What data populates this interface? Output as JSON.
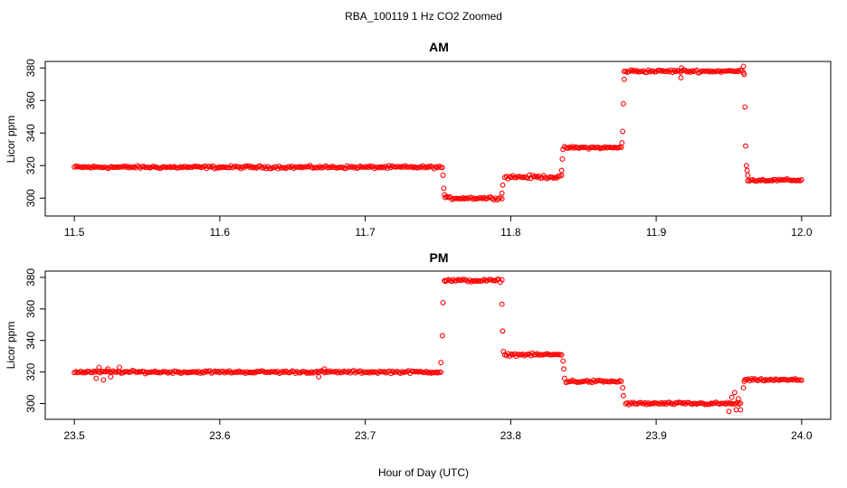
{
  "figure": {
    "title": "RBA_100119  1 Hz CO2 Zoomed",
    "xlabel": "Hour of Day (UTC)"
  },
  "colors": {
    "points": "#ff0000",
    "axes": "#000000",
    "background": "#ffffff"
  },
  "chart_data": [
    {
      "type": "scatter",
      "title": "AM",
      "xlabel": "",
      "ylabel": "Licor ppm",
      "xlim": [
        11.48,
        12.02
      ],
      "ylim": [
        289,
        384
      ],
      "xticks": [
        11.5,
        11.6,
        11.7,
        11.8,
        11.9,
        12.0
      ],
      "xtick_labels": [
        "11.5",
        "11.6",
        "11.7",
        "11.8",
        "11.9",
        "12.0"
      ],
      "yticks": [
        300,
        320,
        340,
        360,
        380
      ],
      "ytick_labels": [
        "300",
        "320",
        "340",
        "360",
        "380"
      ],
      "grid": false,
      "segments": [
        {
          "x_start": 11.5,
          "x_end": 11.753,
          "y": 319,
          "noise": 1.2
        },
        {
          "x_start": 11.755,
          "x_end": 11.794,
          "y": 300,
          "noise": 1.2
        },
        {
          "x_start": 11.796,
          "x_end": 11.835,
          "y": 313,
          "noise": 1.5
        },
        {
          "x_start": 11.837,
          "x_end": 11.876,
          "y": 331,
          "noise": 1.0
        },
        {
          "x_start": 11.878,
          "x_end": 11.96,
          "y": 378,
          "noise": 1.2
        },
        {
          "x_start": 11.963,
          "x_end": 12.0,
          "y": 311,
          "noise": 1.0
        }
      ],
      "transitions": [
        {
          "x": 11.7535,
          "y": 314
        },
        {
          "x": 11.754,
          "y": 306
        },
        {
          "x": 11.7545,
          "y": 302
        },
        {
          "x": 11.794,
          "y": 303
        },
        {
          "x": 11.7945,
          "y": 308
        },
        {
          "x": 11.835,
          "y": 317
        },
        {
          "x": 11.8355,
          "y": 324
        },
        {
          "x": 11.836,
          "y": 330
        },
        {
          "x": 11.8765,
          "y": 334
        },
        {
          "x": 11.877,
          "y": 341
        },
        {
          "x": 11.8775,
          "y": 358
        },
        {
          "x": 11.878,
          "y": 373
        },
        {
          "x": 11.917,
          "y": 374
        },
        {
          "x": 11.9175,
          "y": 380
        },
        {
          "x": 11.96,
          "y": 381
        },
        {
          "x": 11.9605,
          "y": 376
        },
        {
          "x": 11.961,
          "y": 356
        },
        {
          "x": 11.9615,
          "y": 332
        },
        {
          "x": 11.962,
          "y": 320
        },
        {
          "x": 11.9625,
          "y": 317
        },
        {
          "x": 11.963,
          "y": 314
        }
      ]
    },
    {
      "type": "scatter",
      "title": "PM",
      "xlabel": "",
      "ylabel": "Licor ppm",
      "xlim": [
        23.48,
        24.02
      ],
      "ylim": [
        290,
        384
      ],
      "xticks": [
        23.5,
        23.6,
        23.7,
        23.8,
        23.9,
        24.0
      ],
      "xtick_labels": [
        "23.5",
        "23.6",
        "23.7",
        "23.8",
        "23.9",
        "24.0"
      ],
      "yticks": [
        300,
        320,
        340,
        360,
        380
      ],
      "ytick_labels": [
        "300",
        "320",
        "340",
        "360",
        "380"
      ],
      "grid": false,
      "segments": [
        {
          "x_start": 23.5,
          "x_end": 23.752,
          "y": 320,
          "noise": 1.2
        },
        {
          "x_start": 23.755,
          "x_end": 23.794,
          "y": 378,
          "noise": 1.3
        },
        {
          "x_start": 23.796,
          "x_end": 23.835,
          "y": 331,
          "noise": 1.2
        },
        {
          "x_start": 23.838,
          "x_end": 23.876,
          "y": 314,
          "noise": 1.2
        },
        {
          "x_start": 23.879,
          "x_end": 23.958,
          "y": 300,
          "noise": 1.2
        },
        {
          "x_start": 23.961,
          "x_end": 24.0,
          "y": 315,
          "noise": 1.0
        }
      ],
      "transitions": [
        {
          "x": 23.515,
          "y": 316
        },
        {
          "x": 23.517,
          "y": 323
        },
        {
          "x": 23.52,
          "y": 315
        },
        {
          "x": 23.523,
          "y": 322
        },
        {
          "x": 23.525,
          "y": 317
        },
        {
          "x": 23.531,
          "y": 323
        },
        {
          "x": 23.672,
          "y": 322
        },
        {
          "x": 23.668,
          "y": 317
        },
        {
          "x": 23.752,
          "y": 326
        },
        {
          "x": 23.753,
          "y": 343
        },
        {
          "x": 23.7535,
          "y": 364
        },
        {
          "x": 23.7545,
          "y": 378
        },
        {
          "x": 23.794,
          "y": 363
        },
        {
          "x": 23.7945,
          "y": 346
        },
        {
          "x": 23.795,
          "y": 333
        },
        {
          "x": 23.836,
          "y": 327
        },
        {
          "x": 23.8365,
          "y": 322
        },
        {
          "x": 23.837,
          "y": 316
        },
        {
          "x": 23.877,
          "y": 310
        },
        {
          "x": 23.8775,
          "y": 305
        },
        {
          "x": 23.95,
          "y": 295
        },
        {
          "x": 23.952,
          "y": 304
        },
        {
          "x": 23.954,
          "y": 307
        },
        {
          "x": 23.955,
          "y": 296
        },
        {
          "x": 23.9565,
          "y": 303
        },
        {
          "x": 23.958,
          "y": 296
        },
        {
          "x": 23.96,
          "y": 310
        },
        {
          "x": 23.9605,
          "y": 314
        }
      ]
    }
  ]
}
